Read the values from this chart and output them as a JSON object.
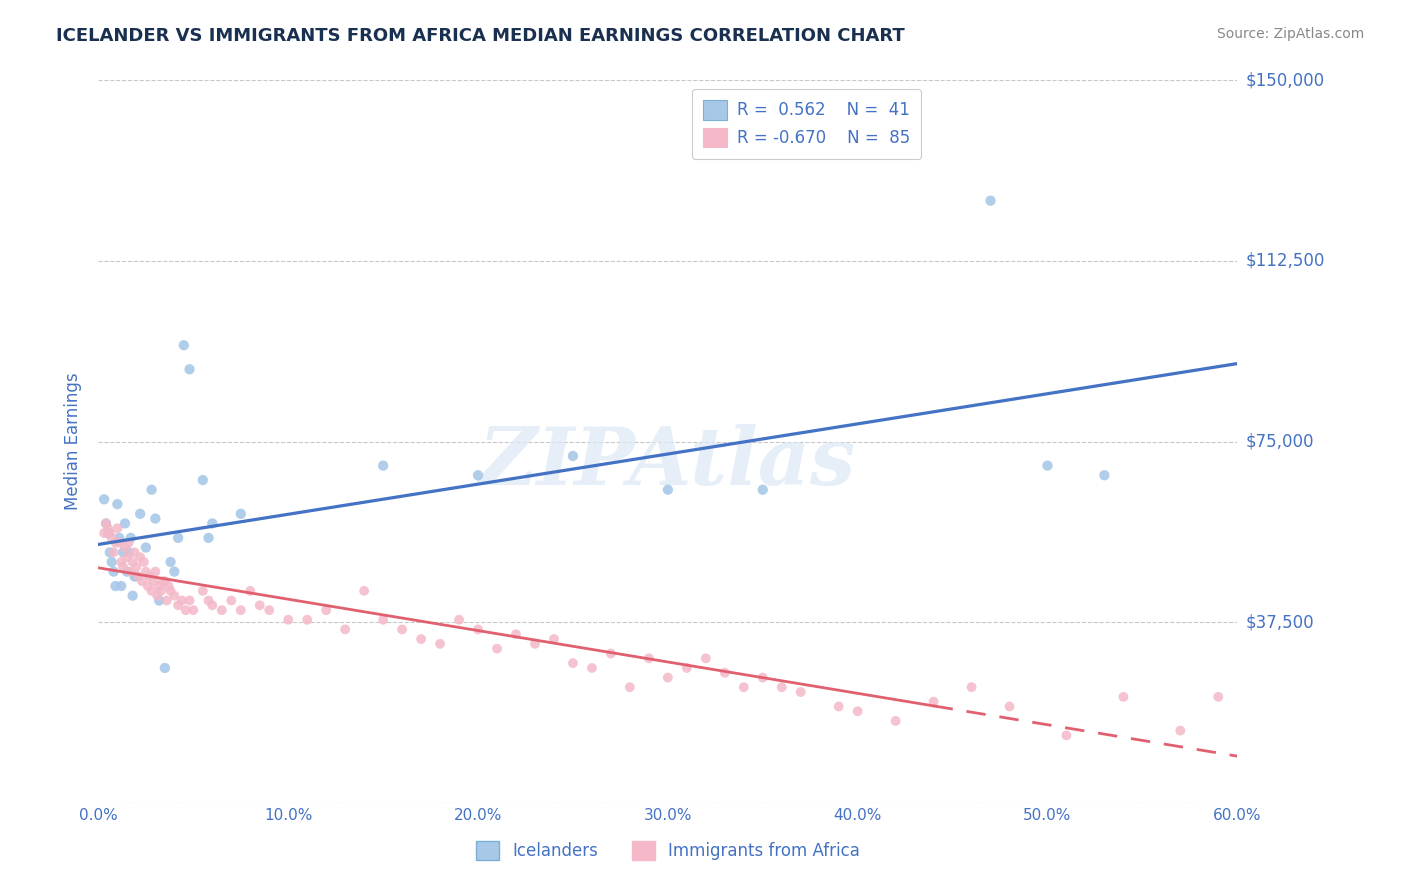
{
  "title": "ICELANDER VS IMMIGRANTS FROM AFRICA MEDIAN EARNINGS CORRELATION CHART",
  "source": "Source: ZipAtlas.com",
  "ylabel": "Median Earnings",
  "xmin": 0.0,
  "xmax": 0.6,
  "ymin": 0,
  "ymax": 150000,
  "legend_label1": "Icelanders",
  "legend_label2": "Immigrants from Africa",
  "blue_line_color": "#4472c4",
  "pink_line_color": "#e06070",
  "blue_scatter_color": "#a8c8e8",
  "pink_scatter_color": "#f4b8c8",
  "blue_box_color": "#a8c8e8",
  "pink_box_color": "#f4b8c8",
  "watermark": "ZIPAtlas",
  "title_color": "#1a3050",
  "axis_color": "#4472c4",
  "legend_text_color": "#4472c4",
  "grid_color": "#c8c8c8",
  "title_fontsize": 13,
  "source_color": "#888888",
  "blue_points": [
    [
      0.003,
      63000
    ],
    [
      0.004,
      58000
    ],
    [
      0.005,
      56000
    ],
    [
      0.006,
      52000
    ],
    [
      0.007,
      50000
    ],
    [
      0.008,
      48000
    ],
    [
      0.009,
      45000
    ],
    [
      0.01,
      62000
    ],
    [
      0.011,
      55000
    ],
    [
      0.012,
      45000
    ],
    [
      0.013,
      52000
    ],
    [
      0.014,
      58000
    ],
    [
      0.015,
      48000
    ],
    [
      0.016,
      52000
    ],
    [
      0.017,
      55000
    ],
    [
      0.018,
      43000
    ],
    [
      0.019,
      47000
    ],
    [
      0.02,
      47000
    ],
    [
      0.022,
      60000
    ],
    [
      0.025,
      53000
    ],
    [
      0.028,
      65000
    ],
    [
      0.03,
      59000
    ],
    [
      0.032,
      42000
    ],
    [
      0.035,
      28000
    ],
    [
      0.038,
      50000
    ],
    [
      0.04,
      48000
    ],
    [
      0.042,
      55000
    ],
    [
      0.045,
      95000
    ],
    [
      0.048,
      90000
    ],
    [
      0.055,
      67000
    ],
    [
      0.058,
      55000
    ],
    [
      0.06,
      58000
    ],
    [
      0.075,
      60000
    ],
    [
      0.15,
      70000
    ],
    [
      0.2,
      68000
    ],
    [
      0.25,
      72000
    ],
    [
      0.3,
      65000
    ],
    [
      0.35,
      65000
    ],
    [
      0.47,
      125000
    ],
    [
      0.5,
      70000
    ],
    [
      0.53,
      68000
    ]
  ],
  "pink_points": [
    [
      0.003,
      56000
    ],
    [
      0.004,
      58000
    ],
    [
      0.005,
      57000
    ],
    [
      0.006,
      56000
    ],
    [
      0.007,
      55000
    ],
    [
      0.008,
      52000
    ],
    [
      0.009,
      54000
    ],
    [
      0.01,
      57000
    ],
    [
      0.011,
      54000
    ],
    [
      0.012,
      50000
    ],
    [
      0.013,
      49000
    ],
    [
      0.014,
      53000
    ],
    [
      0.015,
      51000
    ],
    [
      0.016,
      54000
    ],
    [
      0.017,
      48000
    ],
    [
      0.018,
      50000
    ],
    [
      0.019,
      52000
    ],
    [
      0.02,
      49000
    ],
    [
      0.021,
      47000
    ],
    [
      0.022,
      51000
    ],
    [
      0.023,
      46000
    ],
    [
      0.024,
      50000
    ],
    [
      0.025,
      48000
    ],
    [
      0.026,
      45000
    ],
    [
      0.027,
      47000
    ],
    [
      0.028,
      44000
    ],
    [
      0.029,
      46000
    ],
    [
      0.03,
      48000
    ],
    [
      0.031,
      43000
    ],
    [
      0.032,
      45000
    ],
    [
      0.033,
      44000
    ],
    [
      0.034,
      46000
    ],
    [
      0.035,
      46000
    ],
    [
      0.036,
      42000
    ],
    [
      0.037,
      45000
    ],
    [
      0.038,
      44000
    ],
    [
      0.04,
      43000
    ],
    [
      0.042,
      41000
    ],
    [
      0.044,
      42000
    ],
    [
      0.046,
      40000
    ],
    [
      0.048,
      42000
    ],
    [
      0.05,
      40000
    ],
    [
      0.055,
      44000
    ],
    [
      0.058,
      42000
    ],
    [
      0.06,
      41000
    ],
    [
      0.065,
      40000
    ],
    [
      0.07,
      42000
    ],
    [
      0.075,
      40000
    ],
    [
      0.08,
      44000
    ],
    [
      0.085,
      41000
    ],
    [
      0.09,
      40000
    ],
    [
      0.1,
      38000
    ],
    [
      0.11,
      38000
    ],
    [
      0.12,
      40000
    ],
    [
      0.13,
      36000
    ],
    [
      0.14,
      44000
    ],
    [
      0.15,
      38000
    ],
    [
      0.16,
      36000
    ],
    [
      0.17,
      34000
    ],
    [
      0.18,
      33000
    ],
    [
      0.19,
      38000
    ],
    [
      0.2,
      36000
    ],
    [
      0.21,
      32000
    ],
    [
      0.22,
      35000
    ],
    [
      0.23,
      33000
    ],
    [
      0.24,
      34000
    ],
    [
      0.25,
      29000
    ],
    [
      0.26,
      28000
    ],
    [
      0.27,
      31000
    ],
    [
      0.28,
      24000
    ],
    [
      0.29,
      30000
    ],
    [
      0.3,
      26000
    ],
    [
      0.31,
      28000
    ],
    [
      0.32,
      30000
    ],
    [
      0.33,
      27000
    ],
    [
      0.34,
      24000
    ],
    [
      0.35,
      26000
    ],
    [
      0.36,
      24000
    ],
    [
      0.37,
      23000
    ],
    [
      0.39,
      20000
    ],
    [
      0.4,
      19000
    ],
    [
      0.42,
      17000
    ],
    [
      0.44,
      21000
    ],
    [
      0.46,
      24000
    ],
    [
      0.48,
      20000
    ],
    [
      0.51,
      14000
    ],
    [
      0.54,
      22000
    ],
    [
      0.57,
      15000
    ],
    [
      0.59,
      22000
    ]
  ]
}
